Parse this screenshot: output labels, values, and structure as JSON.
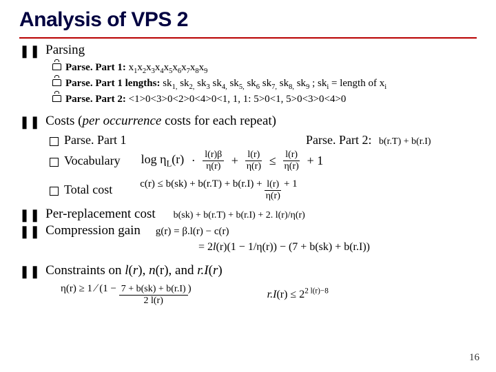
{
  "title": "Analysis of VPS 2",
  "parsing": {
    "heading": "Parsing",
    "items": [
      {
        "label": "Parse. Part 1:",
        "value_html": "x<span class='subi'>1</span>x<span class='subi'>2</span>x<span class='subi'>3</span>x<span class='subi'>4</span>x<span class='subi'>5</span>x<span class='subi'>6</span>x<span class='subi'>7</span>x<span class='subi'>8</span>x<span class='subi'>9</span>"
      },
      {
        "label": "Parse. Part 1 lengths:",
        "value_html": "sk<span class='subi'>1,</span> sk<span class='subi'>2,</span> sk<span class='subi'>3</span> sk<span class='subi'>4,</span> sk<span class='subi'>5,</span> sk<span class='subi'>6</span> sk<span class='subi'>7,</span> sk<span class='subi'>8,</span> sk<span class='subi'>9</span> ; sk<span class='subi'>i</span> = length of x<span class='subi'>i</span>"
      },
      {
        "label": "Parse. Part 2:",
        "value_html": "&lt;1&gt;0&lt;3&gt;0&lt;2&gt;0&lt;4&gt;0&lt;1, 1, 1: 5&gt;0&lt;1, 5&gt;0&lt;3&gt;0&lt;4&gt;0"
      }
    ]
  },
  "costs": {
    "heading_pre": "Costs (",
    "heading_em": "per occurrence",
    "heading_post": " costs for each repeat)",
    "y1": "Parse. Part 1",
    "pp2": "Parse. Part 2:",
    "pp2_formula": "b(r.T) + b(r.I)",
    "y2": "Vocabulary",
    "voc_formula_html": "<span class='costfrac formula'><span>log&nbsp;η<span class='subi'>L</span>(r)</span>&nbsp;·&nbsp;<span class='frac'><span class='fn'>l(r)β</span><span class='fd'>η(r)</span></span>&nbsp;+&nbsp;<span class='frac'><span class='fn'>l(r)</span><span class='fd'>η(r)</span></span>&nbsp;≤&nbsp;<span class='frac'><span class='fn'>l(r)</span><span class='fd'>η(r)</span></span>&nbsp;+ 1</span>",
    "y3": "Total cost",
    "total_formula_html": "<span class='formula'>c(r) ≤ b(sk) + b(r.T) + b(r.I) + <span class='frac'><span class='fn'>l(r)</span><span class='fd'>η(r)</span></span> + 1</span>"
  },
  "per_replacement": {
    "heading": "Per-replacement cost",
    "formula": "b(sk) + b(r.T) + b(r.I) + 2. l(r)/η(r)"
  },
  "compression_gain": {
    "heading": "Compression gain",
    "g_formula": "g(r) = β.l(r) − c(r)",
    "eq2_html": "<span class='formula'>= 2<span class='italic'>l</span>(r)(1 − 1/η(r)) − (7 + b(sk) + b(r.I))</span>"
  },
  "constraints": {
    "heading_pre": "Constraints on ",
    "heading_terms_html": "<span class='italic'>l</span>(<span class='italic'>r</span>), <span class='italic'>n</span>(r), and <span class='italic'>r.I</span>(<span class='italic'>r</span>)",
    "left_formula_html": "<span class='formula'>η(r) ≥ 1 <span class='big'>∕</span> (1 − <span class='frac'><span class='fn'>7 + b(sk) + b(r.I)</span><span class='fd'>2 l(r)</span></span>)</span>",
    "right_formula_html": "<span class='formula'><span class='italic'>r.I</span>(r) ≤ 2<span style='font-size:70%;vertical-align:super'>2 l(r)−8</span></span>"
  },
  "pagenum": "16",
  "colors": {
    "rule": "#b80000",
    "title": "#000040"
  }
}
